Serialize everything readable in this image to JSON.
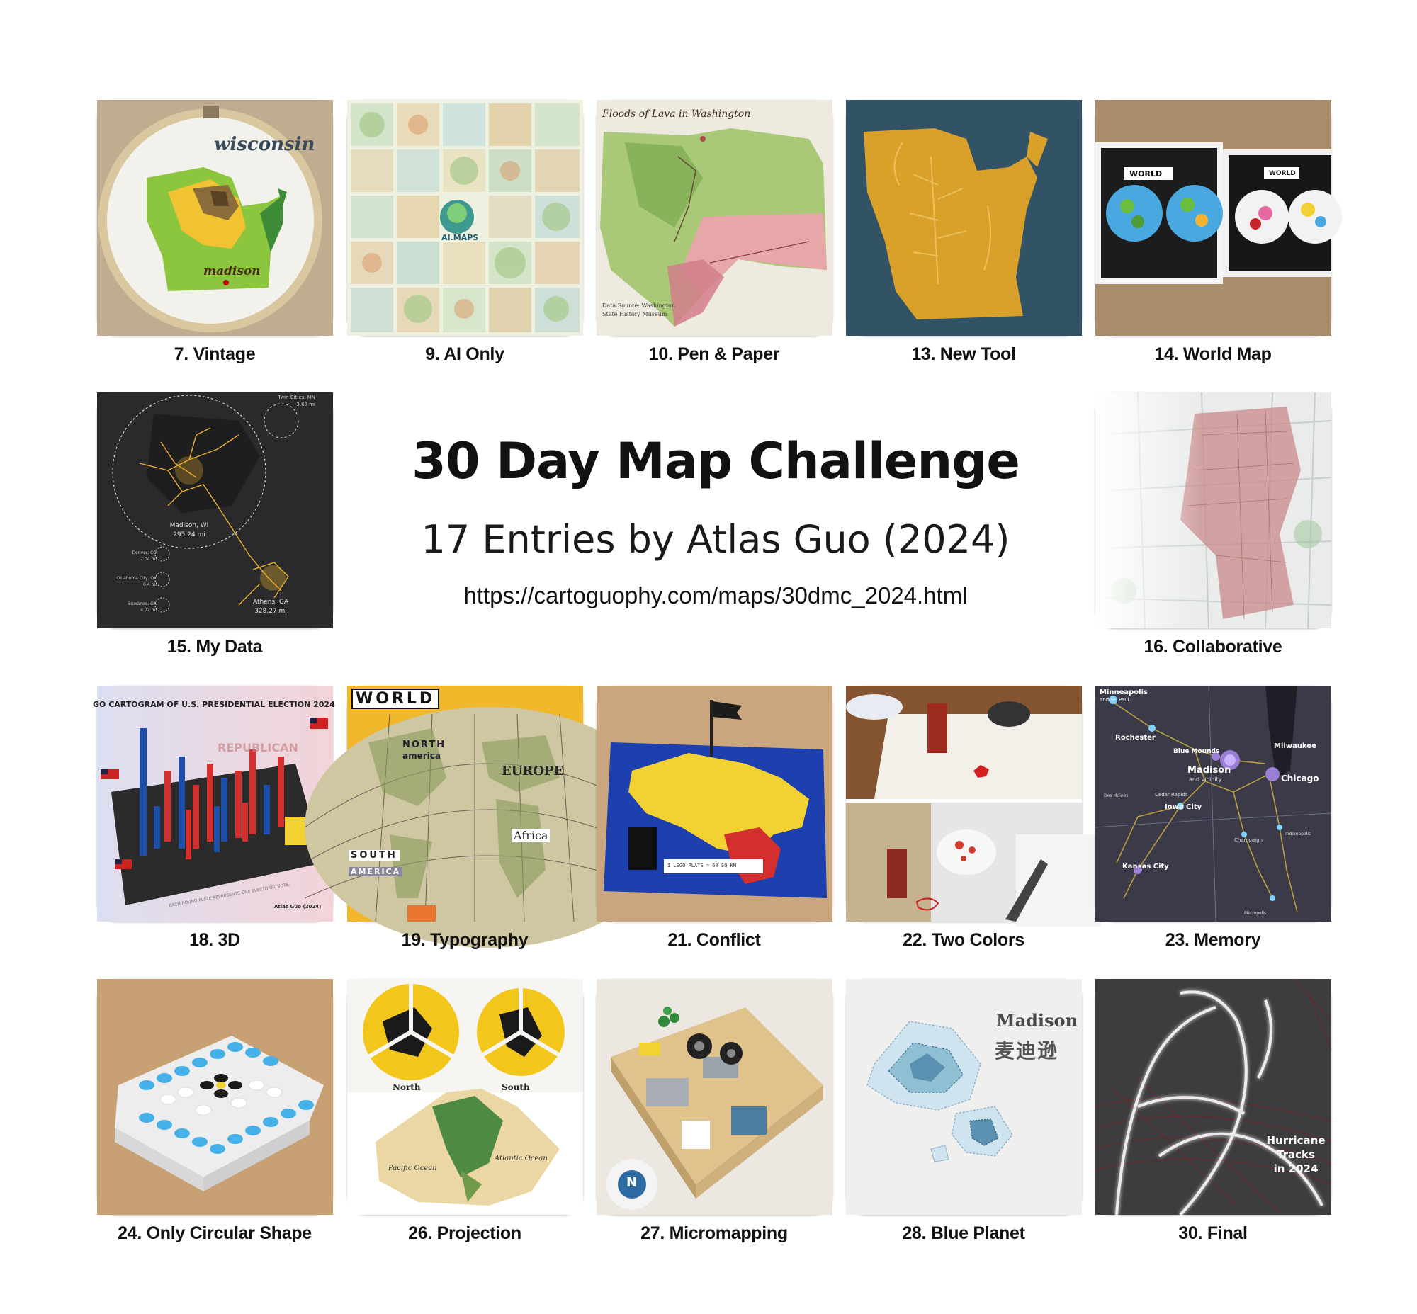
{
  "header": {
    "title": "30 Day Map Challenge",
    "subtitle": "17 Entries by Atlas Guo (2024)",
    "url": "https://cartoguophy.com/maps/30dmc_2024.html"
  },
  "entries": [
    {
      "caption": "7. Vintage",
      "inset": [
        "wisconsin",
        "madison"
      ]
    },
    {
      "caption": "9. AI Only",
      "inset": [
        "AI.MAPS"
      ]
    },
    {
      "caption": "10. Pen & Paper",
      "inset": [
        "Floods of Lava in Washington",
        "Data Source: Washington State History Museum"
      ]
    },
    {
      "caption": "13. New Tool",
      "inset": []
    },
    {
      "caption": "14. World Map",
      "inset": [
        "WORLD",
        "WORLD"
      ]
    },
    {
      "caption": "15. My Data",
      "inset": [
        "Twin Cities, MN",
        "3.68 mi",
        "Madison, WI",
        "295.24 mi",
        "Denver, CO",
        "2.04 mi",
        "Oklahoma City, OK",
        "0.4 mi",
        "Suwanee, GA",
        "4.72 mi",
        "Athens, GA",
        "328.27 mi"
      ]
    },
    {
      "caption": "16. Collaborative",
      "inset": []
    },
    {
      "caption": "18. 3D",
      "inset": [
        "GO CARTOGRAM OF U.S. PRESIDENTIAL ELECTION 2024",
        "REPUBLICAN",
        "EACH ROUND PLATE REPRESENTS ONE ELECTORAL VOTE.",
        "Atlas Guo (2024)"
      ]
    },
    {
      "caption": "19. Typography",
      "inset": [
        "WORLD",
        "NORTH",
        "america",
        "EUROPE",
        "Africa",
        "SOUTH",
        "AMERICA"
      ]
    },
    {
      "caption": "21. Conflict",
      "inset": [
        "I LEGO PLATE = 60 SQ KM"
      ]
    },
    {
      "caption": "22. Two Colors",
      "inset": []
    },
    {
      "caption": "23. Memory",
      "inset": [
        "Minneapolis",
        "and St. Paul",
        "Rochester",
        "Blue Mounds",
        "Madison",
        "and vicinity",
        "Milwaukee",
        "Chicago",
        "Cedar Rapids",
        "Iowa City",
        "Des Moines",
        "Kansas City",
        "Champaign",
        "Indianapolis",
        "Metropolis"
      ]
    },
    {
      "caption": "24. Only Circular Shape",
      "inset": []
    },
    {
      "caption": "26. Projection",
      "inset": [
        "North",
        "South",
        "Pacific Ocean",
        "Atlantic Ocean"
      ]
    },
    {
      "caption": "27. Micromapping",
      "inset": [
        "N"
      ]
    },
    {
      "caption": "28. Blue Planet",
      "inset": [
        "Madison",
        "麦迪逊"
      ]
    },
    {
      "caption": "30. Final",
      "inset": [
        "Hurricane",
        "Tracks",
        "in 2024"
      ]
    }
  ],
  "colors": {
    "caption": "#111111",
    "background": "#ffffff",
    "republican": "#d32f2f",
    "democratic": "#1e4fa8",
    "lego_yellow": "#f5d130",
    "lego_blue": "#45b1e8",
    "map_dark": "#2b2d33"
  }
}
